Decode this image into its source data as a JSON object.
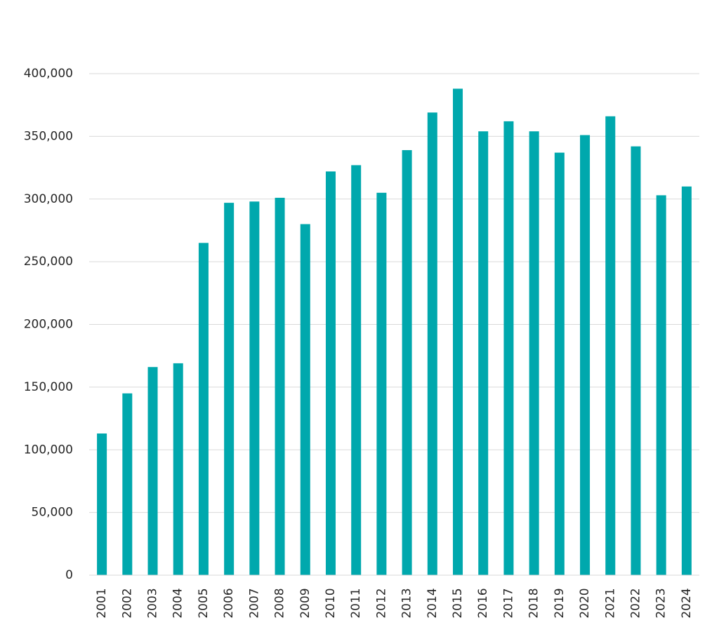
{
  "chart_data": {
    "type": "bar",
    "categories": [
      "2001",
      "2002",
      "2003",
      "2004",
      "2005",
      "2006",
      "2007",
      "2008",
      "2009",
      "2010",
      "2011",
      "2012",
      "2013",
      "2014",
      "2015",
      "2016",
      "2017",
      "2018",
      "2019",
      "2020",
      "2021",
      "2022",
      "2023",
      "2024"
    ],
    "values": [
      113000,
      145000,
      166000,
      169000,
      265000,
      297000,
      298000,
      301000,
      280000,
      322000,
      327000,
      305000,
      339000,
      369000,
      388000,
      354000,
      362000,
      354000,
      337000,
      351000,
      366000,
      342000,
      303000,
      310000
    ],
    "ylim": [
      0,
      400000
    ],
    "yticks": [
      0,
      50000,
      100000,
      150000,
      200000,
      250000,
      300000,
      350000,
      400000
    ],
    "ytick_labels": [
      "0",
      "50,000",
      "100,000",
      "150,000",
      "200,000",
      "250,000",
      "300,000",
      "350,000",
      "400,000"
    ],
    "title": "",
    "xlabel": "",
    "ylabel": "",
    "grid": true,
    "legend": "none",
    "bar_color": "#00a8ad"
  }
}
